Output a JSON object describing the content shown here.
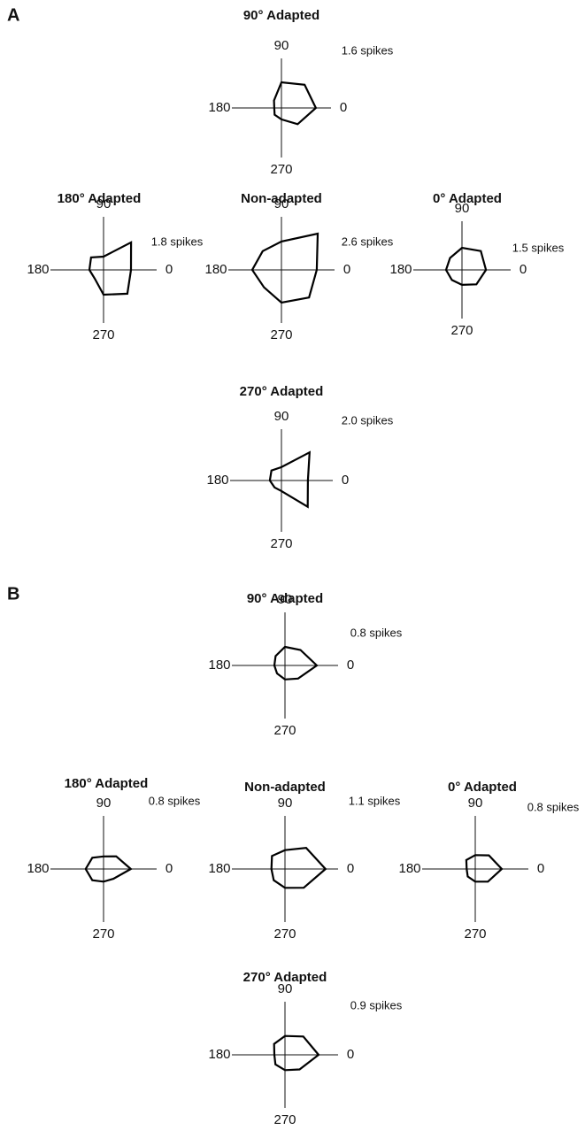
{
  "panel_labels": [
    "A",
    "B"
  ],
  "chart_data": [
    {
      "type": "polar",
      "title": "90° Adapted",
      "theta": [
        0,
        45,
        90,
        135,
        180,
        225,
        270,
        315
      ],
      "values": [
        1.11,
        1.06,
        0.83,
        0.34,
        0.23,
        0.31,
        0.37,
        0.74
      ],
      "rlim": [
        0,
        1.6
      ],
      "rticks": [
        {
          "value": 1.6,
          "label": "1.6 spikes"
        }
      ],
      "thetaticks": [
        0,
        90,
        180,
        270
      ],
      "color": "#000000"
    },
    {
      "type": "polar",
      "title": "180° Adapted",
      "theta": [
        0,
        45,
        90,
        135,
        180,
        225,
        270,
        315
      ],
      "values": [
        0.93,
        1.32,
        0.45,
        0.6,
        0.48,
        0.42,
        0.84,
        1.14
      ],
      "rlim": [
        0,
        1.8
      ],
      "rticks": [
        {
          "value": 1.8,
          "label": "1.8 spikes"
        }
      ],
      "thetaticks": [
        0,
        90,
        180,
        270
      ],
      "color": "#000000"
    },
    {
      "type": "polar",
      "title": "Non-adapted",
      "theta": [
        0,
        45,
        90,
        135,
        180,
        225,
        270,
        315
      ],
      "values": [
        1.73,
        2.51,
        1.39,
        1.3,
        1.43,
        1.21,
        1.6,
        1.91
      ],
      "rlim": [
        0,
        2.6
      ],
      "rticks": [
        {
          "value": 2.6,
          "label": "2.6 spikes"
        }
      ],
      "thetaticks": [
        0,
        90,
        180,
        270
      ],
      "color": "#000000"
    },
    {
      "type": "polar",
      "title": "0° Adapted",
      "theta": [
        0,
        45,
        90,
        135,
        180,
        225,
        270,
        315
      ],
      "values": [
        0.74,
        0.82,
        0.68,
        0.52,
        0.49,
        0.44,
        0.46,
        0.63
      ],
      "rlim": [
        0,
        1.5
      ],
      "rticks": [
        {
          "value": 1.5,
          "label": "1.5 spikes"
        }
      ],
      "thetaticks": [
        0,
        90,
        180,
        270
      ],
      "color": "#000000"
    },
    {
      "type": "polar",
      "title": "270° Adapted",
      "theta": [
        0,
        45,
        90,
        135,
        180,
        225,
        270,
        315
      ],
      "values": [
        1.03,
        1.55,
        0.52,
        0.55,
        0.45,
        0.38,
        0.41,
        1.45
      ],
      "rlim": [
        0,
        2.0
      ],
      "rticks": [
        {
          "value": 2.0,
          "label": "2.0 spikes"
        }
      ],
      "thetaticks": [
        0,
        90,
        180,
        270
      ],
      "color": "#000000"
    },
    {
      "type": "polar",
      "title": "90° Adapted",
      "theta": [
        0,
        45,
        90,
        135,
        180,
        225,
        270,
        315
      ],
      "values": [
        0.48,
        0.33,
        0.28,
        0.2,
        0.16,
        0.17,
        0.21,
        0.28
      ],
      "rlim": [
        0,
        0.8
      ],
      "rticks": [
        {
          "value": 0.8,
          "label": "0.8 spikes"
        }
      ],
      "thetaticks": [
        0,
        90,
        180,
        270
      ],
      "color": "#000000"
    },
    {
      "type": "polar",
      "title": "180° Adapted",
      "theta": [
        0,
        45,
        90,
        135,
        180,
        225,
        270,
        315
      ],
      "values": [
        0.41,
        0.27,
        0.19,
        0.24,
        0.27,
        0.24,
        0.19,
        0.21
      ],
      "rlim": [
        0,
        0.8
      ],
      "rticks": [
        {
          "value": 0.8,
          "label": "0.8 spikes"
        }
      ],
      "thetaticks": [
        0,
        90,
        180,
        270
      ],
      "color": "#000000"
    },
    {
      "type": "polar",
      "title": "Non-adapted",
      "theta": [
        0,
        45,
        90,
        135,
        180,
        225,
        270,
        315
      ],
      "values": [
        0.84,
        0.62,
        0.39,
        0.38,
        0.28,
        0.33,
        0.39,
        0.55
      ],
      "rlim": [
        0,
        1.1
      ],
      "rticks": [
        {
          "value": 1.1,
          "label": "1.1 spikes"
        }
      ],
      "thetaticks": [
        0,
        90,
        180,
        270
      ],
      "color": "#000000"
    },
    {
      "type": "polar",
      "title": "0° Adapted",
      "theta": [
        0,
        45,
        90,
        135,
        180,
        225,
        270,
        315
      ],
      "values": [
        0.4,
        0.29,
        0.21,
        0.19,
        0.13,
        0.16,
        0.19,
        0.27
      ],
      "rlim": [
        0,
        0.8
      ],
      "rticks": [
        {
          "value": 0.8,
          "label": "0.8 spikes"
        }
      ],
      "thetaticks": [
        0,
        90,
        180,
        270
      ],
      "color": "#000000"
    },
    {
      "type": "polar",
      "title": "270° Adapted",
      "theta": [
        0,
        45,
        90,
        135,
        180,
        225,
        270,
        315
      ],
      "values": [
        0.57,
        0.44,
        0.32,
        0.26,
        0.18,
        0.23,
        0.26,
        0.35
      ],
      "rlim": [
        0,
        0.9
      ],
      "rticks": [
        {
          "value": 0.9,
          "label": "0.9 spikes"
        }
      ],
      "thetaticks": [
        0,
        90,
        180,
        270
      ],
      "color": "#000000"
    }
  ]
}
